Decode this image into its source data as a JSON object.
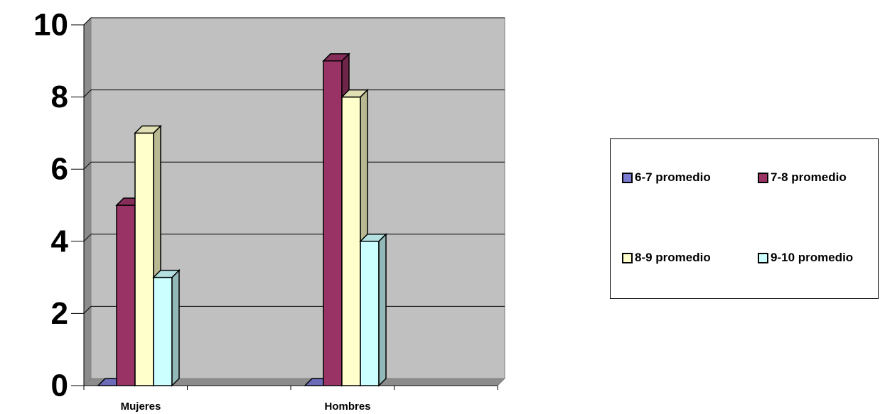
{
  "chart_data": {
    "type": "bar",
    "categories": [
      "Mujeres",
      "Hombres"
    ],
    "series": [
      {
        "name": "6-7 promedio",
        "values": [
          0,
          0
        ],
        "color": "#7a7ad0"
      },
      {
        "name": "7-8 promedio",
        "values": [
          5,
          9
        ],
        "color": "#993366"
      },
      {
        "name": "8-9 promedio",
        "values": [
          7,
          8
        ],
        "color": "#ffffcc"
      },
      {
        "name": "9-10 promedio",
        "values": [
          3,
          4
        ],
        "color": "#ccffff"
      }
    ],
    "ylim": [
      0,
      10
    ],
    "yticks": [
      "0",
      "2",
      "4",
      "6",
      "8",
      "10"
    ],
    "grid": true,
    "legend_position": "right",
    "plot_background": "#c0c0c0",
    "style": "3d-column"
  }
}
